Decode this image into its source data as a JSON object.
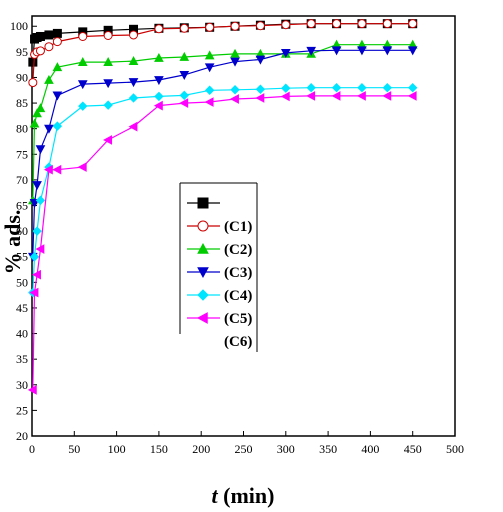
{
  "chart_data": {
    "type": "line",
    "xlabel_italic": "t",
    "xlabel_rest": " (min)",
    "ylabel": "% ads.",
    "xlim": [
      0,
      500
    ],
    "ylim": [
      20,
      102
    ],
    "xticks": [
      0,
      50,
      100,
      150,
      200,
      250,
      300,
      350,
      400,
      450,
      500
    ],
    "yticks": [
      20,
      25,
      30,
      35,
      40,
      45,
      50,
      55,
      60,
      65,
      70,
      75,
      80,
      85,
      90,
      95,
      100
    ],
    "grid": false,
    "legend_position": "center",
    "series": [
      {
        "name": "",
        "marker": "square",
        "color": "#000000",
        "fill": "#000000",
        "x": [
          1,
          3,
          6,
          10,
          20,
          30,
          60,
          90,
          120,
          150,
          180,
          210,
          240,
          270,
          300,
          330,
          360,
          390,
          420,
          450
        ],
        "y": [
          93,
          97.5,
          97.8,
          98,
          98.3,
          98.6,
          98.9,
          99.2,
          99.4,
          99.6,
          99.7,
          99.8,
          100,
          100.2,
          100.4,
          100.5,
          100.5,
          100.5,
          100.5,
          100.5
        ]
      },
      {
        "name": "(C1)",
        "marker": "circle",
        "color": "#cc0000",
        "fill": "#ffffff",
        "x": [
          1,
          3,
          6,
          10,
          20,
          30,
          60,
          90,
          120,
          150,
          180,
          210,
          240,
          270,
          300,
          330,
          360,
          390,
          420,
          450
        ],
        "y": [
          89,
          94.5,
          95,
          95.2,
          96,
          97,
          98,
          98.2,
          98.3,
          99.5,
          99.6,
          99.8,
          100,
          100.1,
          100.3,
          100.5,
          100.5,
          100.5,
          100.5,
          100.5
        ]
      },
      {
        "name": "(C2)",
        "marker": "triangle-up",
        "color": "#00cc00",
        "fill": "#00cc00",
        "x": [
          1,
          3,
          6,
          10,
          20,
          30,
          60,
          90,
          120,
          150,
          180,
          210,
          240,
          270,
          300,
          330,
          360,
          390,
          420,
          450
        ],
        "y": [
          66,
          81,
          83,
          84,
          89.5,
          92,
          93,
          93,
          93.2,
          93.8,
          94,
          94.3,
          94.6,
          94.6,
          94.6,
          94.6,
          96.4,
          96.4,
          96.4,
          96.4
        ]
      },
      {
        "name": "(C3)",
        "marker": "triangle-down",
        "color": "#0000cc",
        "fill": "#0000cc",
        "x": [
          1,
          3,
          6,
          10,
          20,
          30,
          60,
          90,
          120,
          150,
          180,
          210,
          240,
          270,
          300,
          330,
          360,
          390,
          420,
          450
        ],
        "y": [
          55,
          65.5,
          69,
          76,
          80,
          86.5,
          88.7,
          88.9,
          89.1,
          89.5,
          90.5,
          92,
          93.1,
          93.5,
          94.8,
          95.2,
          95.3,
          95.3,
          95.3,
          95.3
        ]
      },
      {
        "name": "(C4)",
        "marker": "diamond",
        "color": "#00e5ff",
        "fill": "#00e5ff",
        "x": [
          1,
          3,
          6,
          10,
          20,
          30,
          60,
          90,
          120,
          150,
          180,
          210,
          240,
          270,
          300,
          330,
          360,
          390,
          420,
          450
        ],
        "y": [
          48,
          55,
          60,
          66,
          72.5,
          80.5,
          84.4,
          84.6,
          86,
          86.3,
          86.5,
          87.5,
          87.6,
          87.7,
          87.9,
          88,
          88,
          88,
          88,
          88
        ]
      },
      {
        "name": "(C5)",
        "marker": "triangle-left",
        "color": "#ff00ff",
        "fill": "#ff00ff",
        "x": [
          1,
          3,
          6,
          10,
          20,
          30,
          60,
          90,
          120,
          150,
          180,
          210,
          240,
          270,
          300,
          330,
          360,
          390,
          420,
          450
        ],
        "y": [
          29,
          48,
          51.5,
          56.5,
          72,
          72,
          72.5,
          77.8,
          80.4,
          84.5,
          85,
          85.2,
          85.8,
          86,
          86.3,
          86.4,
          86.4,
          86.4,
          86.4,
          86.4
        ]
      },
      {
        "name": "(C6)",
        "marker": "none",
        "color": "#000000",
        "fill": "#000000",
        "x": [],
        "y": []
      }
    ]
  }
}
